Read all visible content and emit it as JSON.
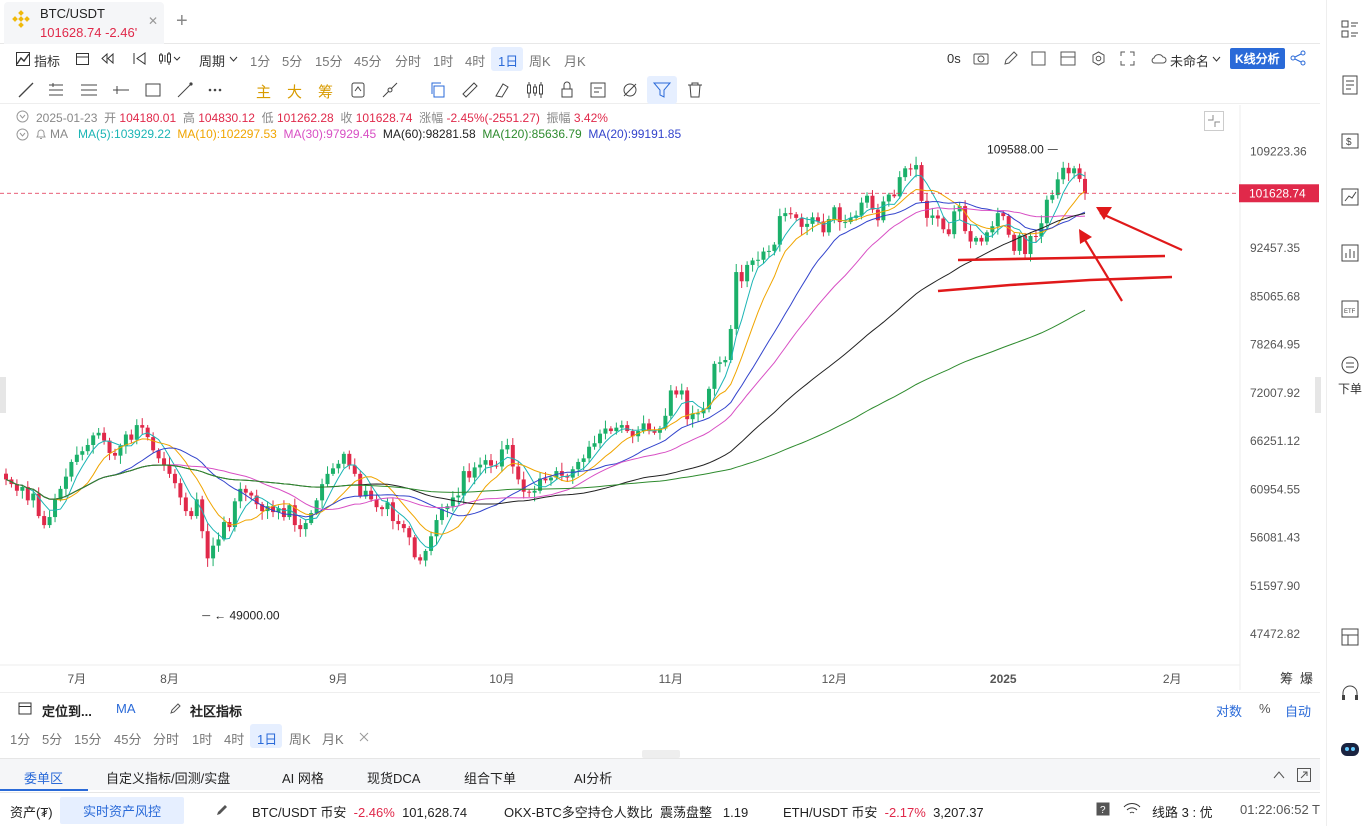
{
  "tab": {
    "symbol": "BTC/USDT",
    "price": "101628.74",
    "change": "-2.46'",
    "close": "✕",
    "add": "+"
  },
  "toolbar1": {
    "indicators": "指标",
    "period": "周期",
    "timeframes": [
      "1分",
      "5分",
      "15分",
      "45分",
      "分时",
      "1时",
      "4时",
      "1日",
      "周K",
      "月K"
    ],
    "latency": "0s",
    "layout_name": "未命名",
    "kline_analysis": "K线分析"
  },
  "toolbar2": {
    "main": "主",
    "big": "大",
    "chip": "筹"
  },
  "info": {
    "date": "2025-01-23",
    "open_label": "开",
    "open": "104180.01",
    "high_label": "高",
    "high": "104830.12",
    "low_label": "低",
    "low": "101262.28",
    "close_label": "收",
    "close": "101628.74",
    "change_label": "涨幅",
    "change": "-2.45%(-2551.27)",
    "amplitude_label": "振幅",
    "amplitude": "3.42%",
    "ma_label": "MA",
    "ma": [
      {
        "text": "MA(5):103929.22",
        "color": "#1bb5b5"
      },
      {
        "text": "MA(10):102297.53",
        "color": "#f0a500"
      },
      {
        "text": "MA(30):97929.45",
        "color": "#d84fc4"
      },
      {
        "text": "MA(60):98281.58",
        "color": "#222222"
      },
      {
        "text": "MA(120):85636.79",
        "color": "#2e8b2e"
      },
      {
        "text": "MA(20):99191.85",
        "color": "#3344cc"
      }
    ]
  },
  "chart_data": {
    "type": "candlestick",
    "symbol": "BTC/USDT",
    "interval": "1日",
    "y_ticks": [
      "109223.36",
      "92457.35",
      "85065.68",
      "78264.95",
      "72007.92",
      "66251.12",
      "60954.55",
      "56081.43",
      "51597.90",
      "47472.82"
    ],
    "x_ticks": [
      "7月",
      "8月",
      "9月",
      "10月",
      "11月",
      "12月",
      "2025",
      "2月"
    ],
    "current_price": "101628.74",
    "max_label": "109588.00",
    "min_label": "49000.00",
    "ylim": [
      45000,
      112000
    ],
    "series_close": [
      62000,
      61500,
      60800,
      61200,
      59800,
      60500,
      58200,
      57300,
      58100,
      59900,
      61000,
      62300,
      63900,
      64700,
      65100,
      65800,
      66900,
      67200,
      66300,
      64900,
      64600,
      65700,
      67000,
      66400,
      68100,
      67800,
      66700,
      65200,
      64300,
      63600,
      62600,
      61600,
      60100,
      58700,
      58200,
      59900,
      56700,
      54100,
      55300,
      55900,
      57600,
      57100,
      59700,
      61000,
      60600,
      60300,
      59400,
      58700,
      59200,
      58600,
      59000,
      58100,
      59300,
      57300,
      56900,
      57500,
      58500,
      59800,
      61500,
      62600,
      63200,
      63700,
      64800,
      63500,
      62600,
      60200,
      60800,
      59900,
      59100,
      58900,
      59600,
      57700,
      57400,
      57000,
      56100,
      54200,
      53900,
      54800,
      56200,
      57800,
      58900,
      59200,
      60100,
      60300,
      62900,
      62200,
      63300,
      63600,
      64100,
      63500,
      63400,
      65300,
      65800,
      63400,
      62000,
      60700,
      60600,
      60800,
      62100,
      61900,
      62200,
      62900,
      62400,
      62200,
      63100,
      63900,
      64300,
      65600,
      66000,
      67100,
      67700,
      67400,
      67800,
      68100,
      67400,
      66800,
      67400,
      68300,
      67400,
      67200,
      67700,
      69200,
      72300,
      71800,
      72300,
      68800,
      69500,
      69500,
      70000,
      72500,
      75700,
      75900,
      76200,
      80400,
      88700,
      87300,
      89800,
      90500,
      90600,
      91900,
      92000,
      93000,
      97700,
      98200,
      98000,
      97400,
      95900,
      96400,
      97500,
      96800,
      95000,
      97200,
      99200,
      96700,
      96700,
      97400,
      97800,
      100000,
      101200,
      98800,
      97000,
      100200,
      101400,
      101100,
      104500,
      106100,
      105900,
      106700,
      100300,
      97400,
      97800,
      97300,
      95500,
      94700,
      98500,
      99400,
      95200,
      93500,
      94100,
      93500,
      95000,
      96000,
      98200,
      97700,
      94600,
      92000,
      94500,
      91500,
      94400,
      94300,
      96500,
      100500,
      101300,
      104100,
      106200,
      105200,
      106100,
      104180,
      101628
    ],
    "series_ma": [
      {
        "name": "MA(60)",
        "last": 98281.58
      },
      {
        "name": "MA(120)",
        "last": 85636.79
      }
    ]
  },
  "bottom": {
    "locate": "定位到...",
    "ma": "MA",
    "community": "社区指标",
    "value_axis": "对数",
    "percent": "%",
    "auto": "自动",
    "timeframes": [
      "1分",
      "5分",
      "15分",
      "45分",
      "分时",
      "1时",
      "4时",
      "1日",
      "周K",
      "月K"
    ],
    "tabs": [
      "委单区",
      "自定义指标/回测/实盘",
      "AI 网格",
      "现货DCA",
      "组合下单",
      "AI分析"
    ],
    "extra_right": [
      "筹",
      "爆"
    ]
  },
  "status": {
    "assets": "资产(₮)",
    "risk": "实时资产风控",
    "t1_name": "BTC/USDT 币安",
    "t1_chg": "-2.46%",
    "t1_val": "101,628.74",
    "t2_name": "OKX-BTC多空持仓人数比",
    "t2_mode": "震荡盘整",
    "t2_val": "1.19",
    "t3_name": "ETH/USDT 币安",
    "t3_chg": "-2.17%",
    "t3_val": "3,207.37",
    "line": "线路 3 : 优",
    "clock": "01:22:06:52 T"
  },
  "sidebar": {
    "order": "下单"
  }
}
